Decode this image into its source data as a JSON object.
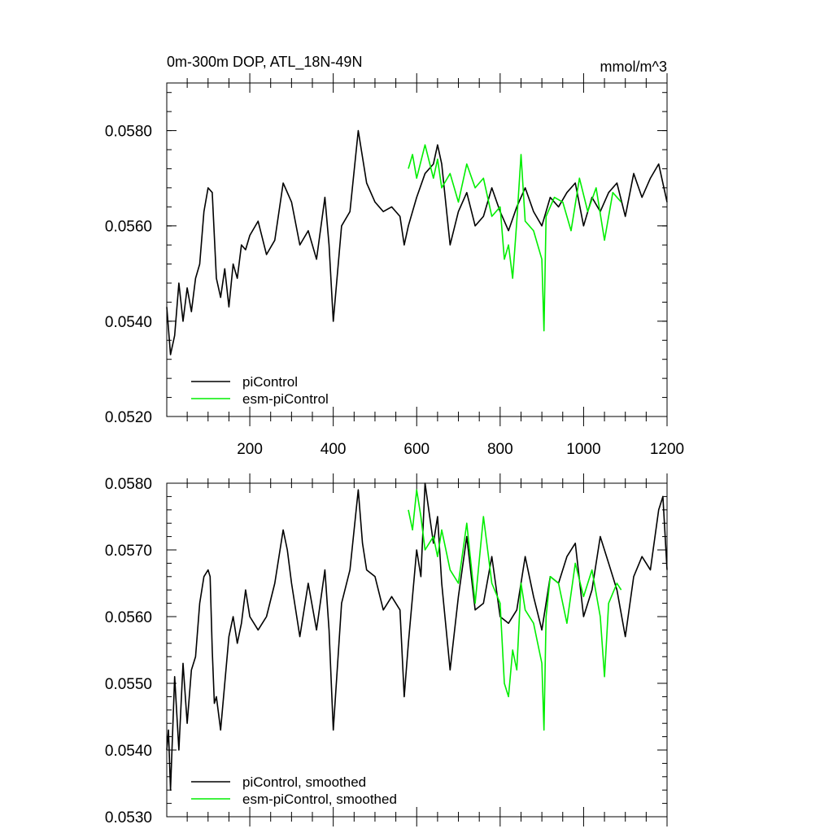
{
  "chart_data": [
    {
      "type": "line",
      "title": "0m-300m DOP, ATL_18N-49N",
      "units": "mmol/m^3",
      "xlabel": "",
      "ylabel": "",
      "xlim": [
        1,
        1200
      ],
      "ylim": [
        0.052,
        0.059
      ],
      "xticks": [
        200,
        400,
        600,
        800,
        1000,
        1200
      ],
      "xtick_labels": [
        "200",
        "400",
        "600",
        "800",
        "1000",
        "1200"
      ],
      "yticks": [
        0.052,
        0.054,
        0.056,
        0.058
      ],
      "ytick_labels": [
        "0.0520",
        "0.0540",
        "0.0560",
        "0.0580"
      ],
      "legend_position": "bottom-left",
      "series": [
        {
          "name": "piControl",
          "color": "#000000",
          "x": [
            1,
            10,
            20,
            30,
            40,
            50,
            60,
            70,
            80,
            90,
            100,
            110,
            120,
            130,
            140,
            150,
            160,
            170,
            180,
            190,
            200,
            220,
            240,
            260,
            280,
            300,
            320,
            340,
            360,
            380,
            390,
            400,
            420,
            440,
            460,
            480,
            500,
            520,
            540,
            560,
            570,
            580,
            600,
            620,
            640,
            650,
            660,
            680,
            700,
            720,
            740,
            760,
            780,
            800,
            820,
            840,
            860,
            880,
            900,
            920,
            940,
            960,
            980,
            1000,
            1020,
            1040,
            1060,
            1080,
            1100,
            1120,
            1140,
            1160,
            1180,
            1200
          ],
          "values": [
            0.0543,
            0.0533,
            0.0537,
            0.0548,
            0.054,
            0.0547,
            0.0542,
            0.0549,
            0.0552,
            0.0563,
            0.0568,
            0.0567,
            0.0549,
            0.0545,
            0.0551,
            0.0543,
            0.0552,
            0.0549,
            0.0556,
            0.0555,
            0.0558,
            0.0561,
            0.0554,
            0.0557,
            0.0569,
            0.0565,
            0.0556,
            0.0559,
            0.0553,
            0.0566,
            0.0556,
            0.054,
            0.056,
            0.0563,
            0.058,
            0.0569,
            0.0565,
            0.0563,
            0.0564,
            0.0562,
            0.0556,
            0.056,
            0.0566,
            0.0571,
            0.0573,
            0.0577,
            0.0573,
            0.0556,
            0.0563,
            0.0567,
            0.056,
            0.0562,
            0.0568,
            0.0563,
            0.0559,
            0.0564,
            0.0568,
            0.0563,
            0.056,
            0.0566,
            0.0564,
            0.0567,
            0.0569,
            0.056,
            0.0566,
            0.0563,
            0.0567,
            0.0569,
            0.0562,
            0.0571,
            0.0566,
            0.057,
            0.0573,
            0.0565
          ]
        },
        {
          "name": "esm-piControl",
          "color": "#00ee00",
          "x": [
            580,
            590,
            600,
            620,
            640,
            650,
            660,
            680,
            700,
            720,
            740,
            760,
            780,
            800,
            810,
            820,
            830,
            840,
            850,
            860,
            880,
            900,
            905,
            910,
            930,
            950,
            970,
            990,
            1010,
            1030,
            1050,
            1070,
            1090
          ],
          "values": [
            0.0572,
            0.0575,
            0.057,
            0.0577,
            0.057,
            0.0574,
            0.0568,
            0.0571,
            0.0565,
            0.0573,
            0.0568,
            0.057,
            0.0562,
            0.0564,
            0.0553,
            0.0556,
            0.0549,
            0.0561,
            0.0575,
            0.0561,
            0.0559,
            0.0553,
            0.0538,
            0.0562,
            0.0566,
            0.0565,
            0.0559,
            0.057,
            0.0563,
            0.0568,
            0.0557,
            0.0567,
            0.0565
          ]
        }
      ]
    },
    {
      "type": "line",
      "title": "",
      "xlabel": "",
      "ylabel": "",
      "xlim": [
        1,
        1200
      ],
      "ylim": [
        0.053,
        0.058
      ],
      "yticks": [
        0.053,
        0.054,
        0.055,
        0.056,
        0.057,
        0.058
      ],
      "ytick_labels": [
        "0.0530",
        "0.0540",
        "0.0550",
        "0.0560",
        "0.0570",
        "0.0580"
      ],
      "legend_position": "bottom-left",
      "series": [
        {
          "name": "piControl, smoothed",
          "color": "#000000",
          "x": [
            1,
            5,
            10,
            20,
            30,
            40,
            50,
            60,
            70,
            80,
            90,
            100,
            105,
            110,
            115,
            120,
            130,
            140,
            150,
            160,
            170,
            180,
            190,
            200,
            220,
            240,
            260,
            280,
            290,
            300,
            320,
            340,
            360,
            380,
            390,
            400,
            420,
            440,
            460,
            470,
            480,
            500,
            520,
            540,
            560,
            570,
            580,
            600,
            610,
            620,
            640,
            650,
            660,
            680,
            700,
            720,
            740,
            760,
            780,
            800,
            820,
            840,
            860,
            880,
            900,
            920,
            940,
            960,
            980,
            1000,
            1020,
            1040,
            1060,
            1080,
            1100,
            1120,
            1140,
            1160,
            1180,
            1190,
            1200
          ],
          "values": [
            0.054,
            0.0543,
            0.0534,
            0.0551,
            0.054,
            0.0553,
            0.0544,
            0.0552,
            0.0554,
            0.0562,
            0.0566,
            0.0567,
            0.0566,
            0.0555,
            0.0547,
            0.0548,
            0.0543,
            0.055,
            0.0557,
            0.056,
            0.0556,
            0.0559,
            0.0564,
            0.056,
            0.0558,
            0.056,
            0.0565,
            0.0573,
            0.057,
            0.0565,
            0.0557,
            0.0565,
            0.0558,
            0.0567,
            0.0558,
            0.0543,
            0.0562,
            0.0567,
            0.0579,
            0.0571,
            0.0567,
            0.0566,
            0.0561,
            0.0563,
            0.0561,
            0.0548,
            0.0556,
            0.057,
            0.0566,
            0.058,
            0.0571,
            0.0575,
            0.0565,
            0.0552,
            0.0563,
            0.0572,
            0.0561,
            0.0562,
            0.0569,
            0.056,
            0.0559,
            0.0561,
            0.0569,
            0.0563,
            0.0558,
            0.0566,
            0.0565,
            0.0569,
            0.0571,
            0.056,
            0.0564,
            0.0572,
            0.0568,
            0.0564,
            0.0557,
            0.0566,
            0.0569,
            0.0567,
            0.0576,
            0.0578,
            0.0567
          ]
        },
        {
          "name": "esm-piControl, smoothed",
          "color": "#00ee00",
          "x": [
            580,
            590,
            600,
            610,
            620,
            640,
            650,
            660,
            680,
            700,
            720,
            740,
            760,
            780,
            800,
            810,
            820,
            830,
            840,
            850,
            860,
            880,
            900,
            905,
            910,
            920,
            940,
            960,
            980,
            1000,
            1020,
            1040,
            1050,
            1060,
            1080,
            1090
          ],
          "values": [
            0.0576,
            0.0573,
            0.0579,
            0.0575,
            0.057,
            0.0572,
            0.0569,
            0.0573,
            0.0567,
            0.0565,
            0.0574,
            0.0562,
            0.0575,
            0.0565,
            0.0562,
            0.055,
            0.0548,
            0.0555,
            0.0552,
            0.0565,
            0.0561,
            0.0559,
            0.0553,
            0.0543,
            0.056,
            0.0566,
            0.0565,
            0.0559,
            0.0568,
            0.0563,
            0.0567,
            0.056,
            0.0551,
            0.0562,
            0.0565,
            0.0564
          ]
        }
      ]
    }
  ]
}
